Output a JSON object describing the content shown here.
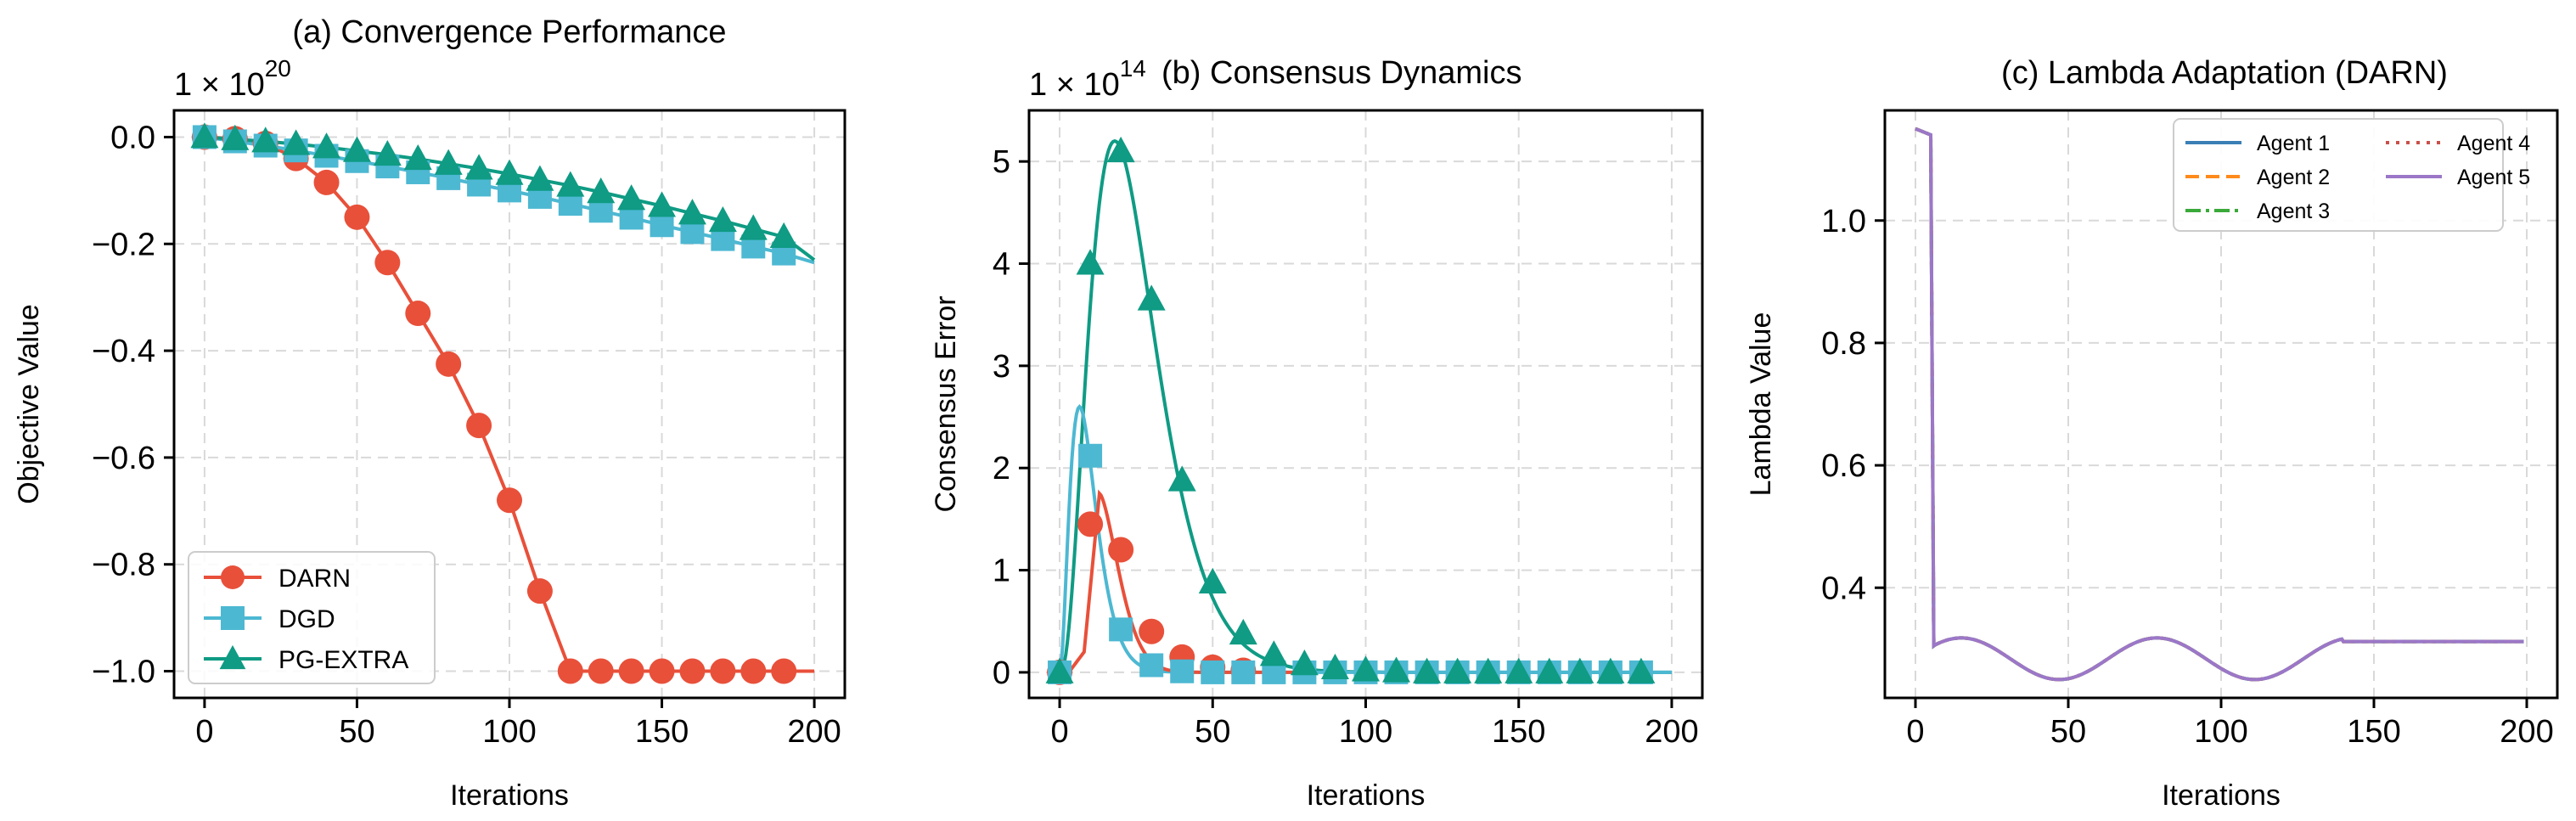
{
  "colors": {
    "darn": "#e8503a",
    "dgd": "#4db8d2",
    "pgextra": "#0f9b84",
    "agent1": "#3a7fb5",
    "agent2": "#ff8a1a",
    "agent3": "#3aa93a",
    "agent4": "#c9504a",
    "agent5": "#9c77c8"
  },
  "chart_data": [
    {
      "type": "line",
      "title": "(a) Convergence Performance",
      "xlabel": "Iterations",
      "ylabel": "Objective Value",
      "offset_text": "1 × 10",
      "offset_exp": "20",
      "xlim": [
        -10,
        210
      ],
      "ylim": [
        -1.05,
        0.05
      ],
      "xticks": [
        0,
        50,
        100,
        150,
        200
      ],
      "xtick_labels": [
        "0",
        "50",
        "100",
        "150",
        "200"
      ],
      "yticks": [
        0.0,
        -0.2,
        -0.4,
        -0.6,
        -0.8,
        -1.0
      ],
      "ytick_labels": [
        "0.0",
        "−0.2",
        "−0.4",
        "−0.6",
        "−0.8",
        "−1.0"
      ],
      "legend": [
        "DARN",
        "DGD",
        "PG-EXTRA"
      ],
      "legend_position": "lower-left",
      "series": [
        {
          "name": "DARN",
          "marker": "circle",
          "x": [
            0,
            10,
            20,
            30,
            40,
            50,
            60,
            70,
            80,
            90,
            100,
            110,
            120,
            130,
            140,
            150,
            160,
            170,
            180,
            190
          ],
          "values": [
            0,
            -0.003,
            -0.012,
            -0.04,
            -0.085,
            -0.15,
            -0.235,
            -0.33,
            -0.425,
            -0.54,
            -0.68,
            -0.85,
            -1.0,
            -1.0,
            -1.0,
            -1.0,
            -1.0,
            -1.0,
            -1.0,
            -1.0
          ]
        },
        {
          "name": "DGD",
          "marker": "square",
          "x": [
            0,
            10,
            20,
            30,
            40,
            50,
            60,
            70,
            80,
            90,
            100,
            110,
            120,
            130,
            140,
            150,
            160,
            170,
            180,
            190
          ],
          "values": [
            0,
            -0.008,
            -0.016,
            -0.025,
            -0.035,
            -0.045,
            -0.055,
            -0.066,
            -0.077,
            -0.089,
            -0.1,
            -0.112,
            -0.125,
            -0.138,
            -0.151,
            -0.165,
            -0.178,
            -0.191,
            -0.205,
            -0.218
          ]
        },
        {
          "name": "PG-EXTRA",
          "marker": "triangle",
          "x": [
            0,
            10,
            20,
            30,
            40,
            50,
            60,
            70,
            80,
            90,
            100,
            110,
            120,
            130,
            140,
            150,
            160,
            170,
            180,
            190
          ],
          "values": [
            0,
            -0.004,
            -0.008,
            -0.013,
            -0.019,
            -0.026,
            -0.033,
            -0.041,
            -0.05,
            -0.059,
            -0.069,
            -0.08,
            -0.091,
            -0.103,
            -0.116,
            -0.129,
            -0.143,
            -0.157,
            -0.172,
            -0.187
          ]
        }
      ]
    },
    {
      "type": "line",
      "title": "(b) Consensus Dynamics",
      "xlabel": "Iterations",
      "ylabel": "Consensus Error",
      "offset_text": "1 × 10",
      "offset_exp": "14",
      "xlim": [
        -10,
        210
      ],
      "ylim": [
        -0.25,
        5.5
      ],
      "xticks": [
        0,
        50,
        100,
        150,
        200
      ],
      "xtick_labels": [
        "0",
        "50",
        "100",
        "150",
        "200"
      ],
      "yticks": [
        0,
        1,
        2,
        3,
        4,
        5
      ],
      "ytick_labels": [
        "0",
        "1",
        "2",
        "3",
        "4",
        "5"
      ],
      "series": [
        {
          "name": "DARN",
          "marker": "circle",
          "x": [
            0,
            10,
            20,
            30,
            40,
            50,
            60
          ],
          "values": [
            0,
            1.45,
            1.2,
            0.4,
            0.15,
            0.05,
            0.02
          ]
        },
        {
          "name": "DGD",
          "marker": "square",
          "x": [
            0,
            10,
            20,
            30,
            40,
            50,
            60,
            70,
            80,
            90,
            100,
            110,
            120,
            130,
            140,
            150,
            160,
            170,
            180,
            190
          ],
          "values": [
            0,
            2.12,
            0.42,
            0.07,
            0.01,
            0,
            0,
            0,
            0,
            0,
            0,
            0,
            0,
            0,
            0,
            0,
            0,
            0,
            0,
            0
          ]
        },
        {
          "name": "PG-EXTRA",
          "marker": "triangle",
          "x": [
            0,
            10,
            20,
            30,
            40,
            50,
            60,
            70,
            80,
            90,
            100,
            110,
            120,
            130,
            140,
            150,
            160,
            170,
            180,
            190
          ],
          "values": [
            0,
            4.0,
            5.1,
            3.65,
            1.88,
            0.88,
            0.38,
            0.17,
            0.08,
            0.04,
            0.02,
            0.01,
            0,
            0,
            0,
            0,
            0,
            0,
            0,
            0
          ]
        }
      ]
    },
    {
      "type": "line",
      "title": "(c) Lambda Adaptation (DARN)",
      "xlabel": "Iterations",
      "ylabel": "Lambda Value",
      "xlim": [
        -10,
        210
      ],
      "ylim": [
        0.22,
        1.18
      ],
      "xticks": [
        0,
        50,
        100,
        150,
        200
      ],
      "xtick_labels": [
        "0",
        "50",
        "100",
        "150",
        "200"
      ],
      "yticks": [
        0.4,
        0.6,
        0.8,
        1.0
      ],
      "ytick_labels": [
        "0.4",
        "0.6",
        "0.8",
        "1.0"
      ],
      "legend": [
        "Agent 1",
        "Agent 2",
        "Agent 3",
        "Agent 4",
        "Agent 5"
      ],
      "legend_position": "upper-right",
      "series_note": "All five agents overlap: drop from 1.15 to ~0.30 at iteration 5, then oscillate between ~0.25 and ~0.32, flattening at ~0.31 after iteration 140.",
      "key_points": {
        "x": [
          0,
          5,
          6,
          15,
          47,
          79,
          111,
          140,
          199
        ],
        "values": [
          1.15,
          1.14,
          0.305,
          0.315,
          0.25,
          0.315,
          0.25,
          0.312,
          0.312
        ]
      }
    }
  ]
}
